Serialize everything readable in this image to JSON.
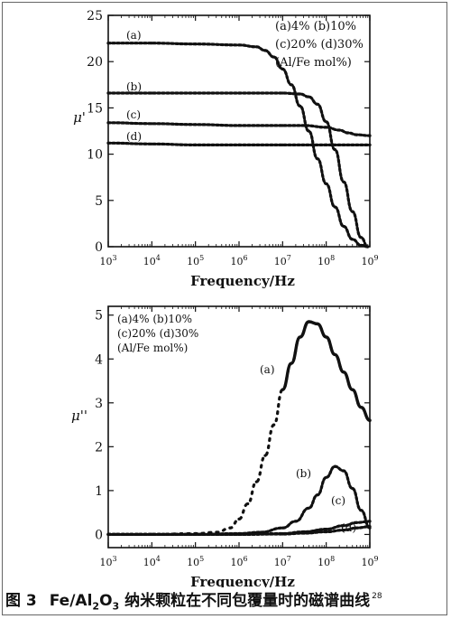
{
  "chart_data": [
    {
      "type": "line",
      "ylabel": "μ'",
      "xlabel": "Frequency/Hz",
      "x_scale": "log",
      "xlim_exp": [
        3,
        9
      ],
      "ylim": [
        0,
        25
      ],
      "y_ticks": [
        "0",
        "5",
        "10",
        "15",
        "20",
        "25"
      ],
      "x_ticks": [
        {
          "base": "10",
          "exp": "3"
        },
        {
          "base": "10",
          "exp": "4"
        },
        {
          "base": "10",
          "exp": "5"
        },
        {
          "base": "10",
          "exp": "6"
        },
        {
          "base": "10",
          "exp": "7"
        },
        {
          "base": "10",
          "exp": "8"
        },
        {
          "base": "10",
          "exp": "9"
        }
      ],
      "legend": [
        "(a)4%  (b)10%",
        "(c)20%  (d)30%",
        "(Al/Fe mol%)"
      ],
      "legend_position": "top-right",
      "series": [
        {
          "name": "(a)",
          "x_exp": [
            3,
            4,
            5,
            6,
            6.4,
            6.6,
            6.8,
            7.0,
            7.2,
            7.4,
            7.6,
            7.8,
            8.0,
            8.2,
            8.4,
            8.6,
            8.8,
            8.95
          ],
          "values": [
            22,
            22,
            21.9,
            21.8,
            21.6,
            21.2,
            20.5,
            19.2,
            17.5,
            15.2,
            12.5,
            9.5,
            6.8,
            4.3,
            2.2,
            0.8,
            0.15,
            0
          ]
        },
        {
          "name": "(b)",
          "x_exp": [
            3,
            4,
            5,
            6,
            7.0,
            7.4,
            7.6,
            7.8,
            8.0,
            8.2,
            8.4,
            8.6,
            8.8,
            8.95
          ],
          "values": [
            16.6,
            16.6,
            16.6,
            16.6,
            16.6,
            16.5,
            16.2,
            15.4,
            13.5,
            10.5,
            7.0,
            3.8,
            1.0,
            0
          ]
        },
        {
          "name": "(c)",
          "x_exp": [
            3,
            4,
            5,
            6,
            7,
            7.5,
            8.0,
            8.3,
            8.5,
            8.7,
            9.0
          ],
          "values": [
            13.4,
            13.3,
            13.2,
            13.1,
            13.1,
            13.1,
            12.9,
            12.6,
            12.3,
            12.1,
            12.0
          ]
        },
        {
          "name": "(d)",
          "x_exp": [
            3,
            4,
            5,
            6,
            7,
            8,
            9
          ],
          "values": [
            11.2,
            11.1,
            11.0,
            11.0,
            11.0,
            11.0,
            11.0
          ]
        }
      ]
    },
    {
      "type": "line",
      "ylabel": "μ''",
      "xlabel": "Frequency/Hz",
      "x_scale": "log",
      "xlim_exp": [
        3,
        9
      ],
      "ylim": [
        -0.3,
        5.2
      ],
      "y_ticks": [
        "0",
        "1",
        "2",
        "3",
        "4",
        "5"
      ],
      "x_ticks": [
        {
          "base": "10",
          "exp": "3"
        },
        {
          "base": "10",
          "exp": "4"
        },
        {
          "base": "10",
          "exp": "5"
        },
        {
          "base": "10",
          "exp": "6"
        },
        {
          "base": "10",
          "exp": "7"
        },
        {
          "base": "10",
          "exp": "8"
        },
        {
          "base": "10",
          "exp": "9"
        }
      ],
      "legend": [
        "(a)4%  (b)10%",
        "(c)20%  (d)30%",
        "(Al/Fe mol%)"
      ],
      "legend_position": "top-left",
      "series": [
        {
          "name": "(a)",
          "x_exp": [
            3,
            4,
            5,
            5.5,
            5.8,
            6.0,
            6.2,
            6.4,
            6.6,
            6.8,
            7.0,
            7.2,
            7.4,
            7.6,
            7.8,
            8.0,
            8.2,
            8.4,
            8.6,
            8.8,
            9.0
          ],
          "values": [
            0,
            0,
            0.02,
            0.05,
            0.15,
            0.35,
            0.7,
            1.2,
            1.8,
            2.5,
            3.3,
            3.9,
            4.5,
            4.85,
            4.8,
            4.5,
            4.1,
            3.7,
            3.3,
            2.9,
            2.6
          ]
        },
        {
          "name": "(b)",
          "x_exp": [
            3,
            5,
            6,
            6.5,
            7.0,
            7.3,
            7.6,
            7.8,
            8.0,
            8.2,
            8.4,
            8.6,
            8.8,
            9.0
          ],
          "values": [
            0,
            0,
            0.02,
            0.05,
            0.15,
            0.3,
            0.6,
            0.9,
            1.3,
            1.55,
            1.45,
            1.05,
            0.55,
            0.15
          ]
        },
        {
          "name": "(c)",
          "x_exp": [
            3,
            6,
            7,
            7.5,
            8.0,
            8.4,
            8.7,
            9.0
          ],
          "values": [
            0,
            0,
            0.02,
            0.06,
            0.12,
            0.2,
            0.27,
            0.3
          ]
        },
        {
          "name": "(d)",
          "x_exp": [
            3,
            6,
            7,
            7.5,
            8.0,
            8.4,
            8.7,
            9.0
          ],
          "values": [
            0,
            0,
            0.01,
            0.03,
            0.06,
            0.1,
            0.15,
            0.18
          ]
        }
      ]
    }
  ],
  "caption": {
    "figure_number": "图 3",
    "text_pre": "Fe/Al",
    "sub1": "2",
    "text_mid": "O",
    "sub2": "3",
    "text_post": " 纳米颗粒在不同包覆量时的磁谱曲线",
    "ref": "28"
  },
  "colors": {
    "line": "#111111",
    "background": "#ffffff",
    "frame": "#666666"
  }
}
